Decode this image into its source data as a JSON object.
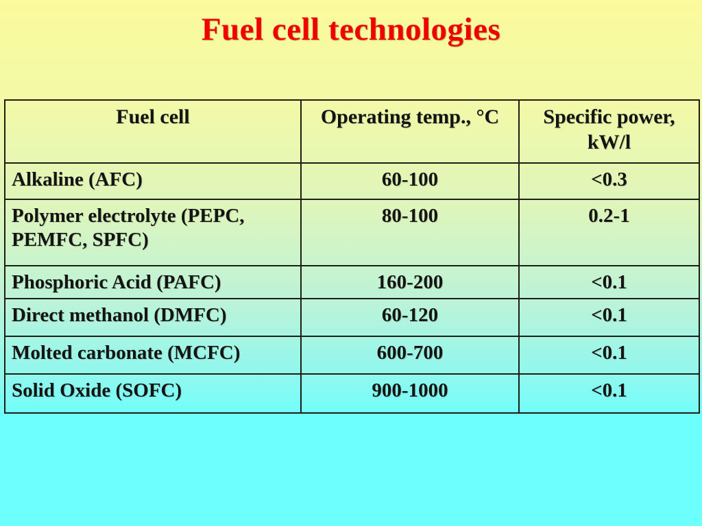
{
  "slide": {
    "title": "Fuel cell technologies"
  },
  "theme": {
    "title_color": "#f20000",
    "bg_top": "#fbfa9c",
    "bg_bottom": "#6cfffe",
    "table_border": "#1d1d12",
    "text_color": "#141414"
  },
  "table": {
    "headers": [
      "Fuel cell",
      "Operating temp., °C",
      "Specific power, kW/l"
    ],
    "rows": [
      {
        "name": "Alkaline (AFC)",
        "temp": "60-100",
        "power": "<0.3"
      },
      {
        "name": "Polymer electrolyte (PEPC, PEMFC, SPFC)",
        "temp": "80-100",
        "power": "0.2-1"
      },
      {
        "name": "Phosphoric Acid (PAFC)",
        "temp": "160-200",
        "power": "<0.1"
      },
      {
        "name": "Direct methanol (DMFC)",
        "temp": "60-120",
        "power": "<0.1"
      },
      {
        "name": "Molted carbonate (MCFC)",
        "temp": "600-700",
        "power": "<0.1"
      },
      {
        "name": "Solid Oxide (SOFC)",
        "temp": "900-1000",
        "power": "<0.1"
      }
    ]
  }
}
